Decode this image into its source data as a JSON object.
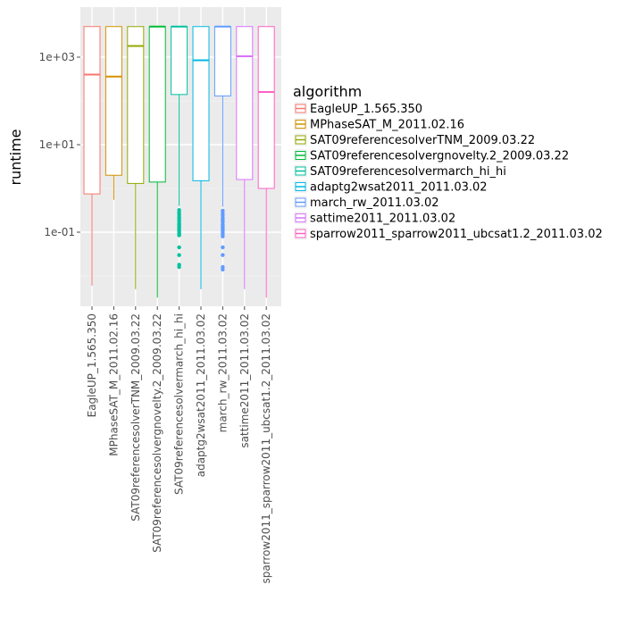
{
  "chart_data": {
    "type": "boxplot",
    "title": "",
    "xlabel": "",
    "ylabel": "runtime",
    "yscale": "log10",
    "ylim": [
      0.0015,
      6000
    ],
    "yticks": [
      {
        "value": 0.1,
        "label": "1e-01"
      },
      {
        "value": 10,
        "label": "1e+01"
      },
      {
        "value": 1000,
        "label": "1e+03"
      }
    ],
    "grid": true,
    "legend": {
      "title": "algorithm",
      "position": "right"
    },
    "categories": [
      "EagleUP_1.565.350",
      "MPhaseSAT_M_2011.02.16",
      "SAT09referencesolverTNM_2009.03.22",
      "SAT09referencesolvergnovelty.2_2009.03.22",
      "SAT09referencesolvermarch_hi_hi",
      "adaptg2wsat2011_2011.03.02",
      "march_rw_2011.03.02",
      "sattime2011_2011.03.02",
      "sparrow2011_sparrow2011_ubcsat1.2_2011.03.02"
    ],
    "colors": [
      "#F8766D",
      "#D39200",
      "#93AA00",
      "#00BA38",
      "#00C19F",
      "#00B9E3",
      "#619CFF",
      "#DB72FB",
      "#FF61C3"
    ],
    "boxes": [
      {
        "name": "EagleUP_1.565.350",
        "min": 0.006,
        "q1": 0.75,
        "median": 400,
        "q3": 5000,
        "max": 5000,
        "outliers": []
      },
      {
        "name": "MPhaseSAT_M_2011.02.16",
        "min": 0.55,
        "q1": 2.0,
        "median": 360,
        "q3": 5000,
        "max": 5000,
        "outliers": []
      },
      {
        "name": "SAT09referencesolverTNM_2009.03.22",
        "min": 0.005,
        "q1": 1.3,
        "median": 1800,
        "q3": 5000,
        "max": 5000,
        "outliers": []
      },
      {
        "name": "SAT09referencesolvergnovelty.2_2009.03.22",
        "min": 0.0032,
        "q1": 1.4,
        "median": 5000,
        "q3": 5000,
        "max": 5000,
        "outliers": []
      },
      {
        "name": "SAT09referencesolvermarch_hi_hi",
        "min": 0.4,
        "q1": 140,
        "median": 5000,
        "q3": 5000,
        "max": 5000,
        "outliers": [
          0.32,
          0.28,
          0.25,
          0.22,
          0.2,
          0.18,
          0.16,
          0.15,
          0.14,
          0.13,
          0.12,
          0.11,
          0.1,
          0.09,
          0.085,
          0.045,
          0.03,
          0.018,
          0.016
        ]
      },
      {
        "name": "adaptg2wsat2011_2011.03.02",
        "min": 0.005,
        "q1": 1.5,
        "median": 850,
        "q3": 5000,
        "max": 5000,
        "outliers": []
      },
      {
        "name": "march_rw_2011.03.02",
        "min": 0.38,
        "q1": 130,
        "median": 5000,
        "q3": 5000,
        "max": 5000,
        "outliers": [
          0.31,
          0.27,
          0.24,
          0.21,
          0.19,
          0.17,
          0.15,
          0.14,
          0.13,
          0.12,
          0.11,
          0.1,
          0.09,
          0.08,
          0.045,
          0.03,
          0.016,
          0.014
        ]
      },
      {
        "name": "sattime2011_2011.03.02",
        "min": 0.005,
        "q1": 1.6,
        "median": 1050,
        "q3": 5000,
        "max": 5000,
        "outliers": []
      },
      {
        "name": "sparrow2011_sparrow2011_ubcsat1.2_2011.03.02",
        "min": 0.0032,
        "q1": 1.0,
        "median": 160,
        "q3": 5000,
        "max": 5000,
        "outliers": []
      }
    ]
  }
}
